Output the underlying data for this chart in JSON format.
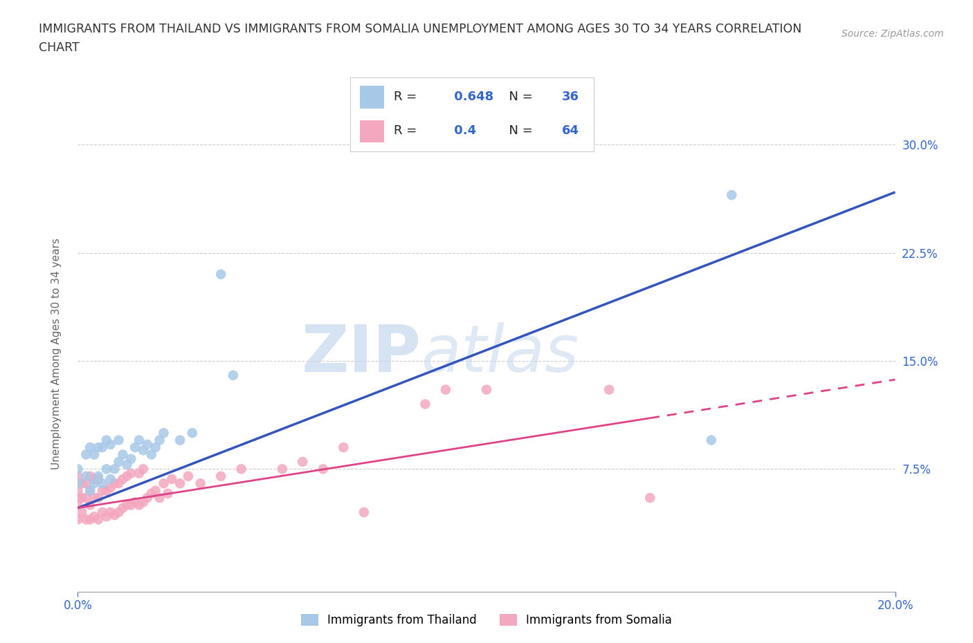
{
  "title_line1": "IMMIGRANTS FROM THAILAND VS IMMIGRANTS FROM SOMALIA UNEMPLOYMENT AMONG AGES 30 TO 34 YEARS CORRELATION",
  "title_line2": "CHART",
  "source": "Source: ZipAtlas.com",
  "ylabel": "Unemployment Among Ages 30 to 34 years",
  "series1_label": "Immigrants from Thailand",
  "series2_label": "Immigrants from Somalia",
  "series1_color": "#a8c8e8",
  "series2_color": "#f4a8c0",
  "series1_line_color": "#3355bb",
  "series2_line_color": "#dd4488",
  "series1_R": 0.648,
  "series1_N": 36,
  "series2_R": 0.4,
  "series2_N": 64,
  "xlim": [
    0.0,
    0.2
  ],
  "ylim": [
    -0.01,
    0.32
  ],
  "xticks": [
    0.0,
    0.2
  ],
  "yticks": [
    0.0,
    0.075,
    0.15,
    0.225,
    0.3
  ],
  "right_ytick_labels": [
    "",
    "7.5%",
    "15.0%",
    "22.5%",
    "30.0%"
  ],
  "watermark_zip": "ZIP",
  "watermark_atlas": "atlas",
  "background_color": "#ffffff",
  "line1_x0": 0.0,
  "line1_y0": 0.048,
  "line1_x1": 0.2,
  "line1_y1": 0.267,
  "line2_x0": 0.0,
  "line2_y0": 0.048,
  "line2_x1": 0.2,
  "line2_y1": 0.137,
  "series1_x": [
    0.0,
    0.0,
    0.002,
    0.002,
    0.003,
    0.003,
    0.004,
    0.004,
    0.005,
    0.005,
    0.006,
    0.006,
    0.007,
    0.007,
    0.008,
    0.008,
    0.009,
    0.01,
    0.01,
    0.011,
    0.012,
    0.013,
    0.014,
    0.015,
    0.016,
    0.017,
    0.018,
    0.019,
    0.02,
    0.021,
    0.025,
    0.028,
    0.035,
    0.038,
    0.16,
    0.155
  ],
  "series1_y": [
    0.065,
    0.075,
    0.07,
    0.085,
    0.06,
    0.09,
    0.065,
    0.085,
    0.07,
    0.09,
    0.065,
    0.09,
    0.075,
    0.095,
    0.068,
    0.092,
    0.075,
    0.08,
    0.095,
    0.085,
    0.078,
    0.082,
    0.09,
    0.095,
    0.088,
    0.092,
    0.085,
    0.09,
    0.095,
    0.1,
    0.095,
    0.1,
    0.21,
    0.14,
    0.265,
    0.095
  ],
  "series2_x": [
    0.0,
    0.0,
    0.0,
    0.0,
    0.0,
    0.001,
    0.001,
    0.001,
    0.002,
    0.002,
    0.002,
    0.003,
    0.003,
    0.003,
    0.003,
    0.004,
    0.004,
    0.004,
    0.005,
    0.005,
    0.005,
    0.006,
    0.006,
    0.007,
    0.007,
    0.008,
    0.008,
    0.009,
    0.009,
    0.01,
    0.01,
    0.011,
    0.011,
    0.012,
    0.012,
    0.013,
    0.013,
    0.014,
    0.015,
    0.015,
    0.016,
    0.016,
    0.017,
    0.018,
    0.019,
    0.02,
    0.021,
    0.022,
    0.023,
    0.025,
    0.027,
    0.03,
    0.035,
    0.04,
    0.05,
    0.055,
    0.06,
    0.065,
    0.07,
    0.085,
    0.09,
    0.1,
    0.13,
    0.14
  ],
  "series2_y": [
    0.04,
    0.05,
    0.055,
    0.06,
    0.07,
    0.045,
    0.055,
    0.065,
    0.04,
    0.055,
    0.065,
    0.04,
    0.05,
    0.06,
    0.07,
    0.042,
    0.055,
    0.068,
    0.04,
    0.055,
    0.068,
    0.045,
    0.06,
    0.042,
    0.06,
    0.045,
    0.062,
    0.043,
    0.065,
    0.045,
    0.065,
    0.048,
    0.068,
    0.05,
    0.07,
    0.05,
    0.072,
    0.052,
    0.05,
    0.072,
    0.052,
    0.075,
    0.055,
    0.058,
    0.06,
    0.055,
    0.065,
    0.058,
    0.068,
    0.065,
    0.07,
    0.065,
    0.07,
    0.075,
    0.075,
    0.08,
    0.075,
    0.09,
    0.045,
    0.12,
    0.13,
    0.13,
    0.13,
    0.055
  ]
}
